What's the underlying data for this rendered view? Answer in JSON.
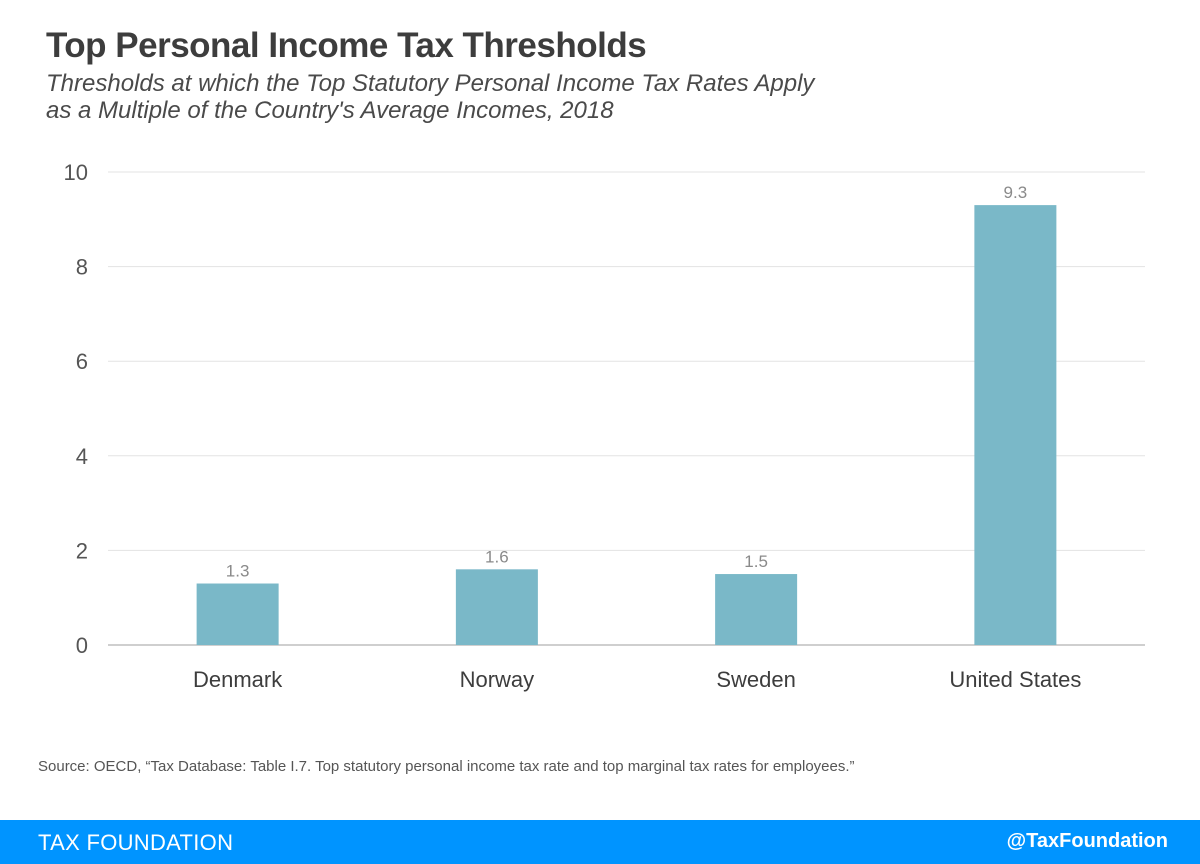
{
  "header": {
    "title": "Top Personal Income Tax Thresholds",
    "subtitle_line1": "Thresholds at which the Top Statutory Personal Income Tax Rates Apply",
    "subtitle_line2": "as a Multiple of the Country's Average Incomes, 2018"
  },
  "chart_data": {
    "type": "bar",
    "categories": [
      "Denmark",
      "Norway",
      "Sweden",
      "United States"
    ],
    "values": [
      1.3,
      1.6,
      1.5,
      9.3
    ],
    "value_labels": [
      "1.3",
      "1.6",
      "1.5",
      "9.3"
    ],
    "yticks": [
      0,
      2,
      4,
      6,
      8,
      10
    ],
    "ylim": [
      0,
      10
    ],
    "grid": true,
    "bar_color": "#7ab8c8",
    "xlabel": "",
    "ylabel": ""
  },
  "source": "Source: OECD, “Tax Database: Table I.7. Top statutory personal income tax rate and top marginal tax rates for employees.”",
  "footer": {
    "left": "TAX FOUNDATION",
    "right": "@TaxFoundation",
    "background": "#0094ff"
  }
}
